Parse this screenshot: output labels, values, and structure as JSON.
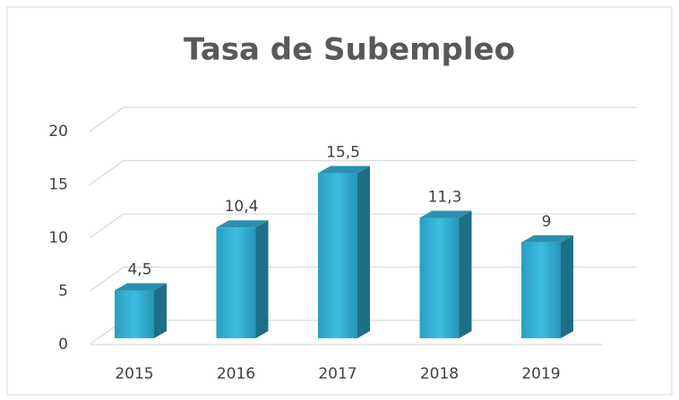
{
  "chart_data": {
    "type": "bar3d",
    "title": "Tasa de Subempleo",
    "categories": [
      "2015",
      "2016",
      "2017",
      "2018",
      "2019"
    ],
    "values": [
      4.5,
      10.4,
      15.5,
      11.3,
      9
    ],
    "value_labels": [
      "4,5",
      "10,4",
      "15,5",
      "11,3",
      "9"
    ],
    "color": "#2fa9cc",
    "ylim": [
      0,
      20
    ],
    "yticks": [
      0,
      5,
      10,
      15,
      20
    ],
    "grid": true
  }
}
